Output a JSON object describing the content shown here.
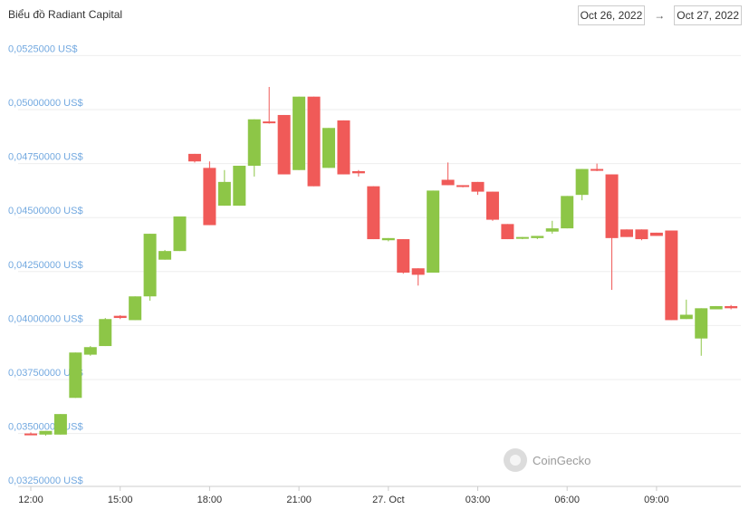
{
  "header": {
    "title": "Biểu đồ Radiant Capital",
    "date_from": "Oct 26, 2022",
    "arrow": "→",
    "date_to": "Oct 27, 2022"
  },
  "colors": {
    "up": "#8dc647",
    "down": "#f05a58",
    "ytick": "#73a9e0",
    "xtick": "#333333",
    "grid": "#eeeeee"
  },
  "watermark": {
    "text": "CoinGecko",
    "icon": "gecko-logo-icon"
  },
  "chart_data": {
    "type": "candlestick",
    "title": "Biểu đồ Radiant Capital",
    "ylim": [
      0.0325,
      0.0535
    ],
    "y_ticks": [
      {
        "value": 0.0325,
        "label": "0,03250000 US$"
      },
      {
        "value": 0.035,
        "label": "0,03500000 US$"
      },
      {
        "value": 0.0375,
        "label": "0,03750000 US$"
      },
      {
        "value": 0.04,
        "label": "0,04000000 US$"
      },
      {
        "value": 0.0425,
        "label": "0,04250000 US$"
      },
      {
        "value": 0.045,
        "label": "0,04500000 US$"
      },
      {
        "value": 0.0475,
        "label": "0,04750000 US$"
      },
      {
        "value": 0.05,
        "label": "0,05000000 US$"
      },
      {
        "value": 0.0525,
        "label": "0,0525000 US$"
      }
    ],
    "x_ticks": [
      {
        "hour": 0,
        "label": "12:00"
      },
      {
        "hour": 3,
        "label": "15:00"
      },
      {
        "hour": 6,
        "label": "18:00"
      },
      {
        "hour": 9,
        "label": "21:00"
      },
      {
        "hour": 12,
        "label": "27. Oct"
      },
      {
        "hour": 15,
        "label": "03:00"
      },
      {
        "hour": 18,
        "label": "06:00"
      },
      {
        "hour": 21,
        "label": "09:00"
      }
    ],
    "x_unit": "hours since Oct 26, 2022 12:00",
    "candles": [
      {
        "t": 0.0,
        "o": 0.035,
        "h": 0.03505,
        "l": 0.03495,
        "c": 0.03495
      },
      {
        "t": 0.5,
        "o": 0.03495,
        "h": 0.03512,
        "l": 0.0349,
        "c": 0.03512
      },
      {
        "t": 1.0,
        "o": 0.03495,
        "h": 0.0359,
        "l": 0.03495,
        "c": 0.0359
      },
      {
        "t": 1.5,
        "o": 0.03665,
        "h": 0.03875,
        "l": 0.03665,
        "c": 0.03875
      },
      {
        "t": 2.0,
        "o": 0.03865,
        "h": 0.03905,
        "l": 0.0386,
        "c": 0.039
      },
      {
        "t": 2.5,
        "o": 0.03905,
        "h": 0.04035,
        "l": 0.03905,
        "c": 0.0403
      },
      {
        "t": 3.0,
        "o": 0.04045,
        "h": 0.04048,
        "l": 0.0403,
        "c": 0.04035
      },
      {
        "t": 3.5,
        "o": 0.04025,
        "h": 0.04135,
        "l": 0.04025,
        "c": 0.04135
      },
      {
        "t": 4.0,
        "o": 0.04135,
        "h": 0.04425,
        "l": 0.04115,
        "c": 0.04425
      },
      {
        "t": 4.5,
        "o": 0.04305,
        "h": 0.0435,
        "l": 0.04305,
        "c": 0.04345
      },
      {
        "t": 5.0,
        "o": 0.04345,
        "h": 0.04505,
        "l": 0.04345,
        "c": 0.04505
      },
      {
        "t": 5.5,
        "o": 0.04795,
        "h": 0.04795,
        "l": 0.04755,
        "c": 0.0476
      },
      {
        "t": 6.0,
        "o": 0.0473,
        "h": 0.0476,
        "l": 0.04465,
        "c": 0.04465
      },
      {
        "t": 6.5,
        "o": 0.04555,
        "h": 0.0472,
        "l": 0.04555,
        "c": 0.04665
      },
      {
        "t": 7.0,
        "o": 0.04555,
        "h": 0.0474,
        "l": 0.04555,
        "c": 0.0474
      },
      {
        "t": 7.5,
        "o": 0.0474,
        "h": 0.04955,
        "l": 0.0469,
        "c": 0.04955
      },
      {
        "t": 8.0,
        "o": 0.04945,
        "h": 0.05105,
        "l": 0.04935,
        "c": 0.0494
      },
      {
        "t": 8.5,
        "o": 0.04975,
        "h": 0.04975,
        "l": 0.047,
        "c": 0.047
      },
      {
        "t": 9.0,
        "o": 0.0472,
        "h": 0.0506,
        "l": 0.0472,
        "c": 0.0506
      },
      {
        "t": 9.5,
        "o": 0.0506,
        "h": 0.0506,
        "l": 0.04645,
        "c": 0.04645
      },
      {
        "t": 10.0,
        "o": 0.0473,
        "h": 0.04915,
        "l": 0.0473,
        "c": 0.04915
      },
      {
        "t": 10.5,
        "o": 0.0495,
        "h": 0.0495,
        "l": 0.047,
        "c": 0.047
      },
      {
        "t": 11.0,
        "o": 0.04715,
        "h": 0.0472,
        "l": 0.0469,
        "c": 0.04705
      },
      {
        "t": 11.5,
        "o": 0.04645,
        "h": 0.04645,
        "l": 0.044,
        "c": 0.044
      },
      {
        "t": 12.0,
        "o": 0.04395,
        "h": 0.04405,
        "l": 0.0439,
        "c": 0.04405
      },
      {
        "t": 12.5,
        "o": 0.044,
        "h": 0.044,
        "l": 0.0424,
        "c": 0.04245
      },
      {
        "t": 13.0,
        "o": 0.04265,
        "h": 0.04265,
        "l": 0.04185,
        "c": 0.04235
      },
      {
        "t": 13.5,
        "o": 0.04245,
        "h": 0.04625,
        "l": 0.04245,
        "c": 0.04625
      },
      {
        "t": 14.0,
        "o": 0.04675,
        "h": 0.04755,
        "l": 0.0465,
        "c": 0.0465
      },
      {
        "t": 14.5,
        "o": 0.0465,
        "h": 0.0465,
        "l": 0.0464,
        "c": 0.04645
      },
      {
        "t": 15.0,
        "o": 0.04665,
        "h": 0.04665,
        "l": 0.04605,
        "c": 0.0462
      },
      {
        "t": 15.5,
        "o": 0.0462,
        "h": 0.0462,
        "l": 0.04485,
        "c": 0.0449
      },
      {
        "t": 16.0,
        "o": 0.0447,
        "h": 0.0447,
        "l": 0.044,
        "c": 0.044
      },
      {
        "t": 16.5,
        "o": 0.04405,
        "h": 0.0441,
        "l": 0.044,
        "c": 0.0441
      },
      {
        "t": 17.0,
        "o": 0.04405,
        "h": 0.04415,
        "l": 0.044,
        "c": 0.04415
      },
      {
        "t": 17.5,
        "o": 0.04435,
        "h": 0.04485,
        "l": 0.04425,
        "c": 0.0445
      },
      {
        "t": 18.0,
        "o": 0.0445,
        "h": 0.046,
        "l": 0.0445,
        "c": 0.046
      },
      {
        "t": 18.5,
        "o": 0.04605,
        "h": 0.04725,
        "l": 0.0458,
        "c": 0.04725
      },
      {
        "t": 19.0,
        "o": 0.04725,
        "h": 0.0475,
        "l": 0.04715,
        "c": 0.0472
      },
      {
        "t": 19.5,
        "o": 0.047,
        "h": 0.047,
        "l": 0.04165,
        "c": 0.04405
      },
      {
        "t": 20.0,
        "o": 0.04445,
        "h": 0.04445,
        "l": 0.0441,
        "c": 0.0441
      },
      {
        "t": 20.5,
        "o": 0.04445,
        "h": 0.04445,
        "l": 0.04395,
        "c": 0.044
      },
      {
        "t": 21.0,
        "o": 0.0443,
        "h": 0.0443,
        "l": 0.04415,
        "c": 0.04415
      },
      {
        "t": 21.5,
        "o": 0.0444,
        "h": 0.0444,
        "l": 0.04025,
        "c": 0.04025
      },
      {
        "t": 22.0,
        "o": 0.0403,
        "h": 0.0412,
        "l": 0.0403,
        "c": 0.0405
      },
      {
        "t": 22.5,
        "o": 0.0394,
        "h": 0.0408,
        "l": 0.0386,
        "c": 0.0408
      },
      {
        "t": 23.0,
        "o": 0.04075,
        "h": 0.0409,
        "l": 0.04075,
        "c": 0.0409
      },
      {
        "t": 23.5,
        "o": 0.0409,
        "h": 0.04095,
        "l": 0.04075,
        "c": 0.0408
      }
    ]
  }
}
